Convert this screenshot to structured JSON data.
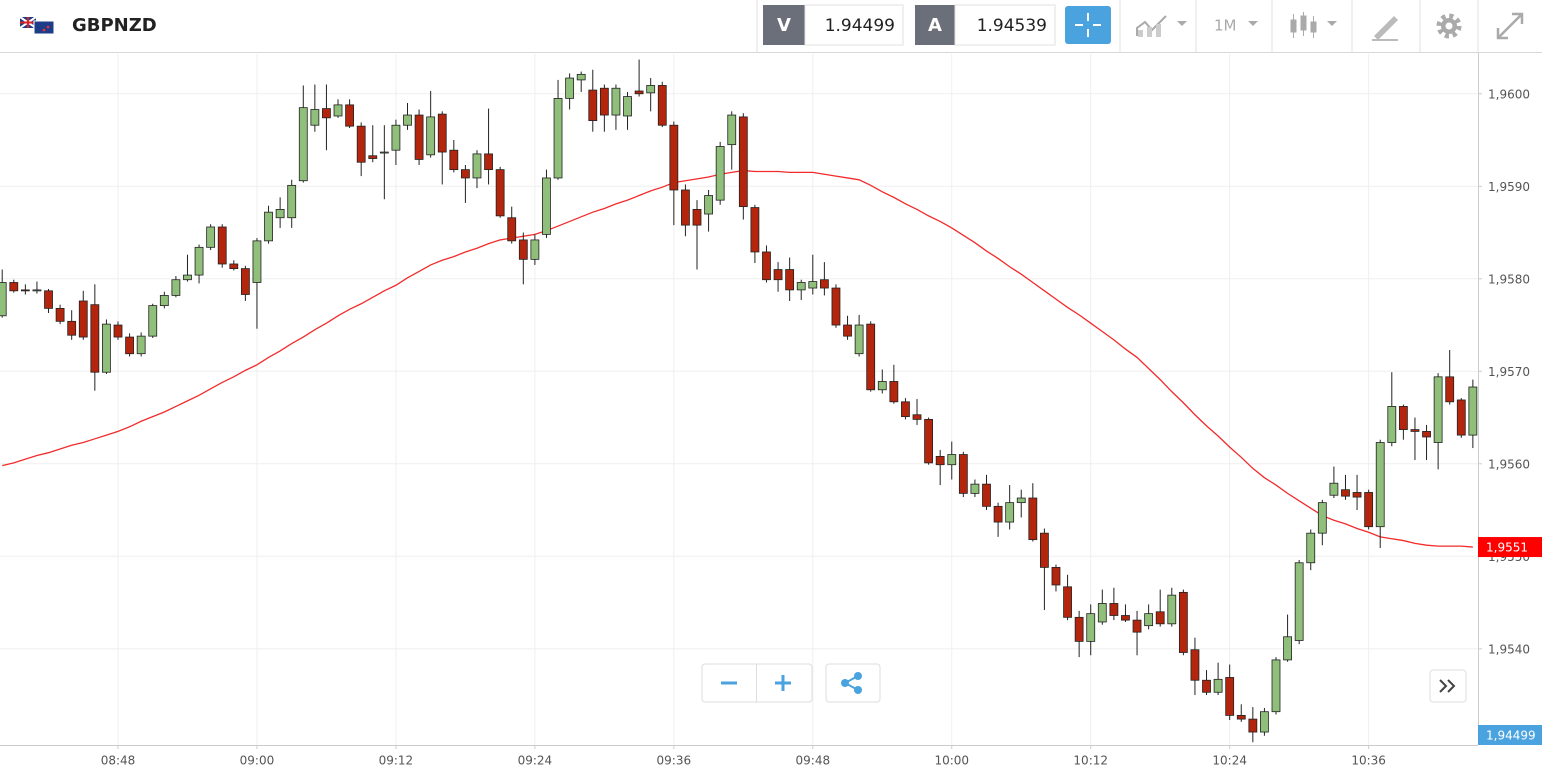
{
  "header": {
    "symbol": "GBPNZD",
    "sell_label": "V",
    "sell_price": 1.94499,
    "buy_label": "A",
    "buy_price": 1.94539,
    "timeframe": "1M"
  },
  "chart_data": {
    "type": "candlestick",
    "x": [
      "08:38",
      "08:39",
      "08:40",
      "08:41",
      "08:42",
      "08:43",
      "08:44",
      "08:45",
      "08:46",
      "08:47",
      "08:48",
      "08:49",
      "08:50",
      "08:51",
      "08:52",
      "08:53",
      "08:54",
      "08:55",
      "08:56",
      "08:57",
      "08:58",
      "08:59",
      "09:00",
      "09:01",
      "09:02",
      "09:03",
      "09:04",
      "09:05",
      "09:06",
      "09:07",
      "09:08",
      "09:09",
      "09:10",
      "09:11",
      "09:12",
      "09:13",
      "09:14",
      "09:15",
      "09:16",
      "09:17",
      "09:18",
      "09:19",
      "09:20",
      "09:21",
      "09:22",
      "09:23",
      "09:24",
      "09:25",
      "09:26",
      "09:27",
      "09:28",
      "09:29",
      "09:30",
      "09:31",
      "09:32",
      "09:33",
      "09:34",
      "09:35",
      "09:36",
      "09:37",
      "09:38",
      "09:39",
      "09:40",
      "09:41",
      "09:42",
      "09:43",
      "09:44",
      "09:45",
      "09:46",
      "09:47",
      "09:48",
      "09:49",
      "09:50",
      "09:51",
      "09:52",
      "09:53",
      "09:54",
      "09:55",
      "09:56",
      "09:57",
      "09:58",
      "09:59",
      "10:00",
      "10:01",
      "10:02",
      "10:03",
      "10:04",
      "10:05",
      "10:06",
      "10:07",
      "10:08",
      "10:09",
      "10:10",
      "10:11",
      "10:12",
      "10:13",
      "10:14",
      "10:15",
      "10:16",
      "10:17",
      "10:18",
      "10:19",
      "10:20",
      "10:21",
      "10:22",
      "10:23",
      "10:24",
      "10:25",
      "10:26",
      "10:27",
      "10:28",
      "10:29",
      "10:30",
      "10:31",
      "10:32",
      "10:33",
      "10:34",
      "10:35",
      "10:36",
      "10:37",
      "10:38",
      "10:39",
      "10:40",
      "10:41",
      "10:42",
      "10:43",
      "10:44",
      "10:45"
    ],
    "open": [
      1.9576,
      1.95796,
      1.95788,
      1.95787,
      1.95787,
      1.95768,
      1.95754,
      1.95776,
      1.95772,
      1.95699,
      1.9575,
      1.95737,
      1.95719,
      1.95738,
      1.95771,
      1.95782,
      1.95799,
      1.95804,
      1.95834,
      1.95856,
      1.95816,
      1.95811,
      1.95796,
      1.95841,
      1.95866,
      1.95866,
      1.95906,
      1.95966,
      1.95984,
      1.95976,
      1.95988,
      1.95965,
      1.95933,
      1.95936,
      1.95939,
      1.95966,
      1.95977,
      1.95934,
      1.95978,
      1.95939,
      1.95918,
      1.95909,
      1.95935,
      1.95918,
      1.95866,
      1.95842,
      1.95821,
      1.95848,
      1.95909,
      1.95995,
      1.96015,
      1.96004,
      1.96006,
      1.95977,
      1.95976,
      1.96003,
      1.96001,
      1.96009,
      1.95966,
      1.95896,
      1.95875,
      1.9587,
      1.95885,
      1.95945,
      1.95975,
      1.95877,
      1.95829,
      1.9581,
      1.9581,
      1.95788,
      1.9579,
      1.95799,
      1.9579,
      1.9575,
      1.95719,
      1.95751,
      1.9568,
      1.95689,
      1.95667,
      1.95653,
      1.95648,
      1.95608,
      1.95599,
      1.9561,
      1.95568,
      1.95578,
      1.95554,
      1.95537,
      1.95558,
      1.95563,
      1.95525,
      1.95488,
      1.95467,
      1.95434,
      1.95408,
      1.95429,
      1.95449,
      1.95436,
      1.95431,
      1.95425,
      1.9544,
      1.95427,
      1.95461,
      1.95399,
      1.95366,
      1.95353,
      1.95369,
      1.95328,
      1.95324,
      1.9531,
      1.95332,
      1.95388,
      1.95409,
      1.95493,
      1.95525,
      1.95566,
      1.95572,
      1.95569,
      1.95569,
      1.95532,
      1.95623,
      1.95662,
      1.95637,
      1.95635,
      1.95623,
      1.95694,
      1.95669,
      1.95631
    ],
    "high": [
      1.9581,
      1.95799,
      1.95794,
      1.95797,
      1.95789,
      1.95772,
      1.95766,
      1.95787,
      1.95794,
      1.95756,
      1.95754,
      1.95741,
      1.95742,
      1.95773,
      1.95786,
      1.95803,
      1.95826,
      1.95837,
      1.95859,
      1.95859,
      1.9582,
      1.95814,
      1.95844,
      1.95879,
      1.95888,
      1.95907,
      1.96009,
      1.9601,
      1.9601,
      1.95994,
      1.95994,
      1.95969,
      1.95966,
      1.95966,
      1.95972,
      1.9599,
      1.95983,
      1.96003,
      1.95981,
      1.9595,
      1.95923,
      1.95939,
      1.95984,
      1.95921,
      1.95878,
      1.9585,
      1.95848,
      1.95918,
      1.96015,
      1.96022,
      1.96024,
      1.96026,
      1.9601,
      1.9601,
      1.96002,
      1.96037,
      1.96017,
      1.96013,
      1.9597,
      1.95902,
      1.95885,
      1.95896,
      1.95948,
      1.95981,
      1.95979,
      1.9588,
      1.95836,
      1.95818,
      1.95823,
      1.95799,
      1.95826,
      1.95818,
      1.95794,
      1.9576,
      1.95761,
      1.95754,
      1.95702,
      1.95707,
      1.95671,
      1.9567,
      1.9565,
      1.95615,
      1.95624,
      1.95613,
      1.95583,
      1.95588,
      1.95558,
      1.95577,
      1.95572,
      1.95579,
      1.9553,
      1.95491,
      1.9548,
      1.95441,
      1.95448,
      1.95464,
      1.95466,
      1.95448,
      1.95441,
      1.95448,
      1.95464,
      1.95466,
      1.95464,
      1.95412,
      1.95377,
      1.95385,
      1.95383,
      1.9534,
      1.95337,
      1.95336,
      1.95391,
      1.95437,
      1.95496,
      1.95529,
      1.95561,
      1.95597,
      1.95588,
      1.95588,
      1.95572,
      1.95626,
      1.95699,
      1.95664,
      1.9565,
      1.95642,
      1.95698,
      1.95723,
      1.95671,
      1.95691
    ],
    "low": [
      1.95758,
      1.95785,
      1.95783,
      1.95784,
      1.95763,
      1.95751,
      1.95734,
      1.95734,
      1.95679,
      1.95697,
      1.95734,
      1.95716,
      1.95716,
      1.95736,
      1.95768,
      1.9578,
      1.95797,
      1.95795,
      1.95831,
      1.95812,
      1.95809,
      1.95776,
      1.95746,
      1.95838,
      1.95855,
      1.95855,
      1.95904,
      1.95959,
      1.95939,
      1.95974,
      1.95963,
      1.95911,
      1.95926,
      1.95886,
      1.95923,
      1.95961,
      1.95923,
      1.95931,
      1.95902,
      1.95915,
      1.95882,
      1.95898,
      1.95902,
      1.95866,
      1.95838,
      1.95794,
      1.95815,
      1.95844,
      1.95907,
      1.95983,
      1.96002,
      1.95959,
      1.95959,
      1.95961,
      1.95961,
      1.95997,
      1.95981,
      1.95964,
      1.95858,
      1.95846,
      1.9581,
      1.95851,
      1.9588,
      1.95918,
      1.95864,
      1.95817,
      1.95796,
      1.95786,
      1.95776,
      1.95777,
      1.95783,
      1.95782,
      1.95747,
      1.95734,
      1.95716,
      1.95678,
      1.95676,
      1.95665,
      1.95648,
      1.95642,
      1.95599,
      1.95577,
      1.95583,
      1.95564,
      1.95564,
      1.9555,
      1.95521,
      1.95529,
      1.95542,
      1.95516,
      1.95442,
      1.95462,
      1.95431,
      1.95391,
      1.95393,
      1.95426,
      1.95431,
      1.95429,
      1.95393,
      1.95421,
      1.95424,
      1.95424,
      1.95393,
      1.9535,
      1.9535,
      1.9535,
      1.95323,
      1.95321,
      1.95299,
      1.95306,
      1.95329,
      1.95386,
      1.95405,
      1.95485,
      1.95512,
      1.95563,
      1.95561,
      1.9555,
      1.95529,
      1.95509,
      1.95619,
      1.95626,
      1.95604,
      1.95604,
      1.95594,
      1.95664,
      1.95628,
      1.95617
    ],
    "close": [
      1.95796,
      1.95787,
      1.95787,
      1.95788,
      1.95768,
      1.95754,
      1.95739,
      1.95737,
      1.95699,
      1.95751,
      1.95737,
      1.95719,
      1.95738,
      1.95771,
      1.95782,
      1.95799,
      1.95804,
      1.95834,
      1.95856,
      1.95816,
      1.95811,
      1.95783,
      1.95841,
      1.95872,
      1.95875,
      1.95901,
      1.95985,
      1.95983,
      1.95974,
      1.95988,
      1.95965,
      1.95926,
      1.9593,
      1.95937,
      1.95966,
      1.95977,
      1.95929,
      1.95975,
      1.95937,
      1.95918,
      1.95909,
      1.95935,
      1.95918,
      1.95868,
      1.95841,
      1.95821,
      1.95842,
      1.95909,
      1.95995,
      1.96017,
      1.96021,
      1.95971,
      1.95977,
      1.96006,
      1.95997,
      1.96,
      1.96009,
      1.95966,
      1.95896,
      1.95858,
      1.95858,
      1.9589,
      1.95943,
      1.95977,
      1.95878,
      1.95829,
      1.95799,
      1.95799,
      1.95788,
      1.95796,
      1.95797,
      1.9579,
      1.9575,
      1.95738,
      1.9575,
      1.9568,
      1.95689,
      1.95667,
      1.95651,
      1.95648,
      1.95601,
      1.95599,
      1.9561,
      1.95568,
      1.95578,
      1.95554,
      1.95537,
      1.95558,
      1.95563,
      1.95518,
      1.95488,
      1.95469,
      1.95434,
      1.95408,
      1.95438,
      1.95449,
      1.95436,
      1.95431,
      1.95418,
      1.95438,
      1.95427,
      1.95458,
      1.95396,
      1.95366,
      1.95353,
      1.95367,
      1.95328,
      1.95324,
      1.9531,
      1.95332,
      1.95388,
      1.95413,
      1.95493,
      1.95525,
      1.95558,
      1.95579,
      1.95565,
      1.95564,
      1.95532,
      1.95623,
      1.95662,
      1.95637,
      1.95635,
      1.95629,
      1.95694,
      1.95667,
      1.95631,
      1.95683
    ],
    "up_color": "#8fbf7a",
    "down_color": "#b3260d",
    "overlay": {
      "color": "#f22b2b",
      "values": [
        1.95598,
        1.95601,
        1.95605,
        1.95609,
        1.95612,
        1.95616,
        1.9562,
        1.95623,
        1.95627,
        1.95631,
        1.95635,
        1.9564,
        1.95646,
        1.95651,
        1.95656,
        1.95662,
        1.95668,
        1.95674,
        1.95681,
        1.95688,
        1.95694,
        1.95701,
        1.95707,
        1.95715,
        1.95722,
        1.9573,
        1.95737,
        1.95745,
        1.95752,
        1.9576,
        1.95767,
        1.95773,
        1.9578,
        1.95787,
        1.95793,
        1.95801,
        1.95808,
        1.95815,
        1.9582,
        1.95824,
        1.95829,
        1.95833,
        1.95838,
        1.95842,
        1.95844,
        1.95846,
        1.95848,
        1.95852,
        1.95857,
        1.95862,
        1.95867,
        1.95872,
        1.95876,
        1.95881,
        1.95885,
        1.9589,
        1.95895,
        1.95899,
        1.95904,
        1.95906,
        1.95908,
        1.9591,
        1.95913,
        1.95915,
        1.95917,
        1.95916,
        1.95916,
        1.95916,
        1.95915,
        1.95915,
        1.95915,
        1.95913,
        1.95911,
        1.95909,
        1.95907,
        1.95901,
        1.95894,
        1.95888,
        1.95881,
        1.95875,
        1.95868,
        1.95862,
        1.95855,
        1.95847,
        1.95839,
        1.9583,
        1.95822,
        1.95813,
        1.95805,
        1.95796,
        1.95787,
        1.95778,
        1.95769,
        1.95761,
        1.95752,
        1.95743,
        1.95734,
        1.95724,
        1.95715,
        1.95703,
        1.95691,
        1.95678,
        1.95666,
        1.95653,
        1.95641,
        1.9563,
        1.95618,
        1.95607,
        1.95595,
        1.95585,
        1.95577,
        1.95568,
        1.9556,
        1.95552,
        1.95544,
        1.95539,
        1.95535,
        1.9553,
        1.95526,
        1.95521,
        1.95519,
        1.95517,
        1.95514,
        1.95512,
        1.95511,
        1.95511,
        1.95511,
        1.9551
      ]
    },
    "ylim": [
      1.95296,
      1.96043
    ],
    "yticks": [
      {
        "value": 1.954,
        "label": "1,9540"
      },
      {
        "value": 1.955,
        "label": "1,9550"
      },
      {
        "value": 1.956,
        "label": "1,9560"
      },
      {
        "value": 1.957,
        "label": "1,9570"
      },
      {
        "value": 1.958,
        "label": "1,9580"
      },
      {
        "value": 1.959,
        "label": "1,9590"
      },
      {
        "value": 1.96,
        "label": "1,9600"
      }
    ],
    "xticks": [
      "08:48",
      "09:00",
      "09:12",
      "09:24",
      "09:36",
      "09:48",
      "10:00",
      "10:12",
      "10:24",
      "10:36"
    ],
    "grid": true,
    "price_labels": [
      {
        "value": 1.9551,
        "label": "1,9551",
        "color": "#ff0000"
      },
      {
        "value": 1.94499,
        "label": "1,94499",
        "color": "#4aa3df"
      }
    ]
  }
}
